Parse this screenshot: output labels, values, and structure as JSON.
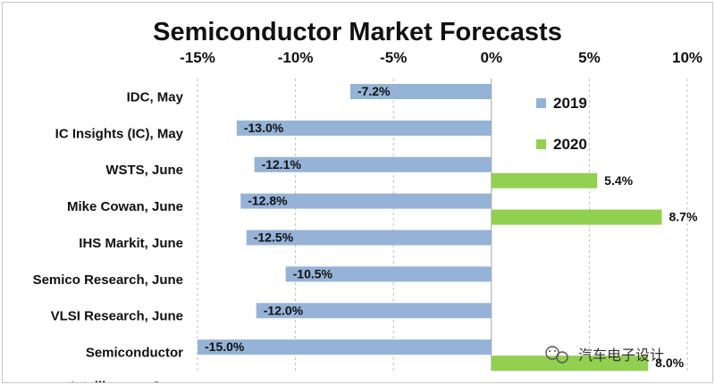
{
  "chart_data": {
    "type": "bar",
    "orientation": "horizontal",
    "title": "Semiconductor Market Forecasts",
    "xlabel": "",
    "ylabel": "",
    "xlim": [
      -15,
      10
    ],
    "x_ticks": [
      -15,
      -10,
      -5,
      0,
      5,
      10
    ],
    "x_tick_labels": [
      "-15%",
      "-10%",
      "-5%",
      "0%",
      "5%",
      "10%"
    ],
    "x_axis_position": "top",
    "grid": "vertical-dashed",
    "legend_position": "right",
    "categories": [
      [
        "IDC, May"
      ],
      [
        "IC Insights (IC), May"
      ],
      [
        "WSTS, June"
      ],
      [
        "Mike Cowan, June"
      ],
      [
        "IHS Markit, June"
      ],
      [
        "Semico Research, June"
      ],
      [
        "VLSI Research, June"
      ],
      [
        "Semiconductor",
        "Intelligence, June"
      ]
    ],
    "series": [
      {
        "name": "2019",
        "color": "#95b3d7",
        "values": [
          -7.2,
          -13.0,
          -12.1,
          -12.8,
          -12.5,
          -10.5,
          -12.0,
          -15.0
        ],
        "labels": [
          "-7.2%",
          "-13.0%",
          "-12.1%",
          "-12.8%",
          "-12.5%",
          "-10.5%",
          "-12.0%",
          "-15.0%"
        ]
      },
      {
        "name": "2020",
        "color": "#92d050",
        "values": [
          null,
          null,
          5.4,
          8.7,
          null,
          null,
          null,
          8.0
        ],
        "labels": [
          "",
          "",
          "5.4%",
          "8.7%",
          "",
          "",
          "",
          "8.0%"
        ]
      }
    ]
  },
  "watermark": {
    "text": "汽车电子设计",
    "icon": "wechat-logo-icon"
  }
}
